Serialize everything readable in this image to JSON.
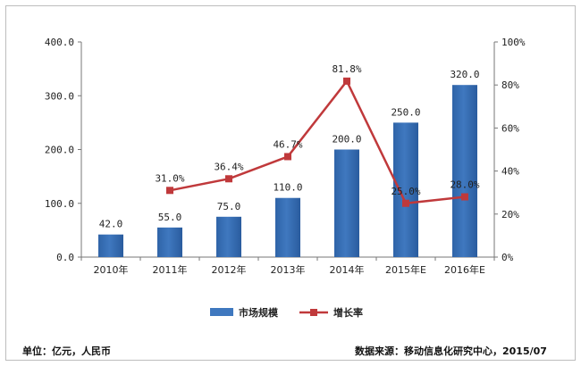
{
  "chart_data": {
    "type": "bar",
    "categories": [
      "2010年",
      "2011年",
      "2012年",
      "2013年",
      "2014年",
      "2015年E",
      "2016年E"
    ],
    "series": [
      {
        "name": "市场规模",
        "type": "bar",
        "axis": "left",
        "color": "#3f78bf",
        "values": [
          42.0,
          55.0,
          75.0,
          110.0,
          200.0,
          250.0,
          320.0
        ],
        "labels": [
          "42.0",
          "55.0",
          "75.0",
          "110.0",
          "200.0",
          "250.0",
          "320.0"
        ]
      },
      {
        "name": "增长率",
        "type": "line",
        "axis": "right",
        "color": "#c0393b",
        "values": [
          null,
          31.0,
          36.4,
          46.7,
          81.8,
          25.0,
          28.0
        ],
        "labels": [
          "",
          "31.0%",
          "36.4%",
          "46.7%",
          "81.8%",
          "25.0%",
          "28.0%"
        ]
      }
    ],
    "y_left": {
      "range": [
        0,
        400
      ],
      "ticks": [
        "0.0",
        "100.0",
        "200.0",
        "300.0",
        "400.0"
      ]
    },
    "y_right": {
      "range": [
        0,
        100
      ],
      "ticks": [
        "0%",
        "20%",
        "40%",
        "60%",
        "80%",
        "100%"
      ]
    },
    "grid": false,
    "legend_position": "bottom"
  },
  "footer": {
    "unit": "单位：亿元，人民币",
    "source": "数据来源：移动信息化研究中心，2015/07"
  }
}
